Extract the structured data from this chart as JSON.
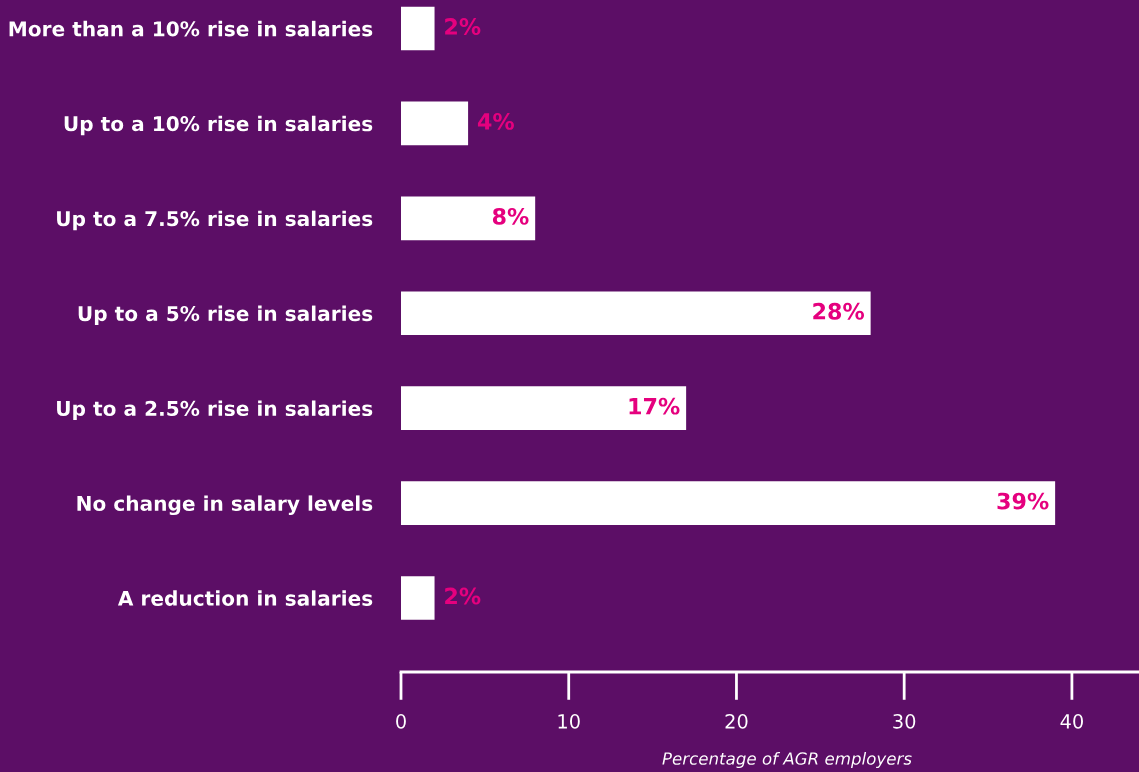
{
  "chart_data": {
    "type": "bar",
    "orientation": "horizontal",
    "xlabel": "Percentage of AGR employers",
    "categories": [
      "More than a 10% rise in salaries",
      "Up to a 10% rise in salaries",
      "Up to a 7.5% rise in salaries",
      "Up to a 5% rise in salaries",
      "Up to a 2.5% rise in salaries",
      "No change in salary levels",
      "A reduction in salaries"
    ],
    "values": [
      2,
      4,
      8,
      28,
      17,
      39,
      2
    ],
    "value_labels": [
      "2%",
      "4%",
      "8%",
      "28%",
      "17%",
      "39%",
      "2%"
    ],
    "color": "#ffffff",
    "xlim": [
      0,
      44
    ],
    "xticks": [
      0,
      10,
      20,
      30,
      40
    ],
    "grid": false,
    "legend": false
  }
}
